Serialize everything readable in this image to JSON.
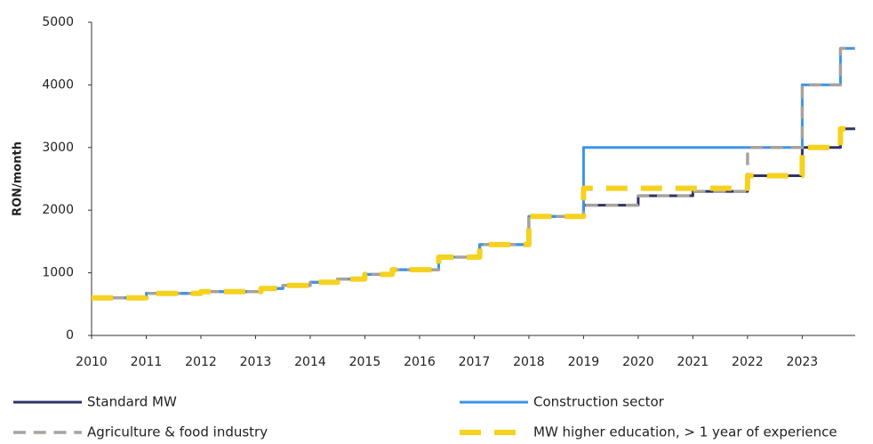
{
  "chart_data": {
    "type": "line",
    "y_label": "RON/month",
    "xlim": [
      2010,
      2023.97
    ],
    "xticks": [
      2010,
      2011,
      2012,
      2013,
      2014,
      2015,
      2016,
      2017,
      2018,
      2019,
      2020,
      2021,
      2022,
      2023
    ],
    "ylim": [
      0,
      5000
    ],
    "yticks": [
      0,
      1000,
      2000,
      3000,
      4000,
      5000
    ],
    "series": [
      {
        "name": "Standard MW",
        "color": "#2e3468",
        "dash": false,
        "width": 3,
        "x": [
          2010,
          2011,
          2011,
          2012,
          2012,
          2013.1,
          2013.1,
          2013.5,
          2013.5,
          2014,
          2014,
          2014.5,
          2014.5,
          2015,
          2015,
          2015.5,
          2015.5,
          2016.35,
          2016.35,
          2017.1,
          2017.1,
          2018,
          2018,
          2019,
          2019,
          2020,
          2020,
          2021,
          2021,
          2022,
          2022,
          2023,
          2023,
          2023.7,
          2023.7,
          2023.97
        ],
        "values": [
          600,
          600,
          670,
          670,
          700,
          700,
          750,
          750,
          800,
          800,
          850,
          850,
          900,
          900,
          975,
          975,
          1050,
          1050,
          1250,
          1250,
          1450,
          1450,
          1900,
          1900,
          2080,
          2080,
          2230,
          2230,
          2300,
          2300,
          2550,
          2550,
          3000,
          3000,
          3300,
          3300
        ]
      },
      {
        "name": "Construction sector",
        "color": "#3c95e6",
        "dash": false,
        "width": 3,
        "x": [
          2010,
          2011,
          2011,
          2012,
          2012,
          2013.1,
          2013.1,
          2013.5,
          2013.5,
          2014,
          2014,
          2014.5,
          2014.5,
          2015,
          2015,
          2015.5,
          2015.5,
          2016.35,
          2016.35,
          2017.1,
          2017.1,
          2018,
          2018,
          2019,
          2019,
          2023,
          2023,
          2023.7,
          2023.7,
          2023.97
        ],
        "values": [
          600,
          600,
          670,
          670,
          700,
          700,
          750,
          750,
          800,
          800,
          850,
          850,
          900,
          900,
          975,
          975,
          1050,
          1050,
          1250,
          1250,
          1450,
          1450,
          1900,
          1900,
          3000,
          3000,
          4000,
          4000,
          4582,
          4582
        ]
      },
      {
        "name": "Agriculture & food industry",
        "color": "#a8a29e",
        "dash": true,
        "width": 3.5,
        "x": [
          2010,
          2011,
          2011,
          2012,
          2012,
          2013.1,
          2013.1,
          2013.5,
          2013.5,
          2014,
          2014,
          2014.5,
          2014.5,
          2015,
          2015,
          2015.5,
          2015.5,
          2016.35,
          2016.35,
          2017.1,
          2017.1,
          2018,
          2018,
          2019,
          2019,
          2020,
          2020,
          2021,
          2021,
          2022,
          2022,
          2023,
          2023,
          2023.7,
          2023.7,
          2023.97
        ],
        "values": [
          600,
          600,
          670,
          670,
          700,
          700,
          750,
          750,
          800,
          800,
          850,
          850,
          900,
          900,
          975,
          975,
          1050,
          1050,
          1250,
          1250,
          1450,
          1450,
          1900,
          1900,
          2080,
          2080,
          2230,
          2230,
          2300,
          2300,
          3000,
          3000,
          4000,
          4000,
          4582,
          4582
        ]
      },
      {
        "name": "MW higher education, > 1 year of experience",
        "color": "#f5d21f",
        "dash": true,
        "width": 6,
        "x": [
          2010,
          2011,
          2011,
          2012,
          2012,
          2013.1,
          2013.1,
          2013.5,
          2013.5,
          2014,
          2014,
          2014.5,
          2014.5,
          2015,
          2015,
          2015.5,
          2015.5,
          2016.35,
          2016.35,
          2017.1,
          2017.1,
          2018,
          2018,
          2019,
          2019,
          2022,
          2022,
          2023,
          2023,
          2023.7,
          2023.7,
          2023.97
        ],
        "values": [
          600,
          600,
          670,
          670,
          700,
          700,
          750,
          750,
          800,
          800,
          850,
          850,
          900,
          900,
          975,
          975,
          1050,
          1050,
          1250,
          1250,
          1450,
          1450,
          1900,
          1900,
          2350,
          2350,
          2550,
          2550,
          3000,
          3000,
          3300,
          3300
        ]
      }
    ]
  }
}
